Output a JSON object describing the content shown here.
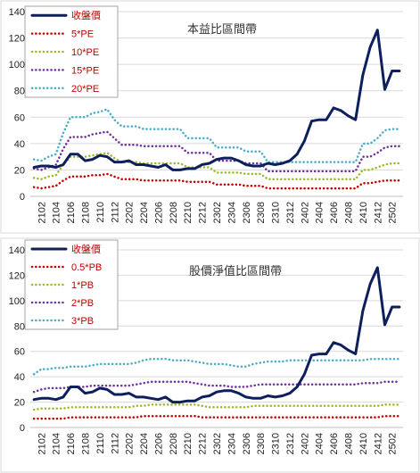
{
  "chart_data": [
    {
      "type": "line",
      "title": "本益比區間帶",
      "ylim": [
        0,
        140
      ],
      "yticks": [
        0,
        20,
        40,
        60,
        80,
        100,
        120,
        140
      ],
      "grid": "horizontal",
      "legend_placement": "top-left",
      "x": [
        "2101",
        "2102",
        "2103",
        "2104",
        "2105",
        "2106",
        "2107",
        "2108",
        "2109",
        "2110",
        "2111",
        "2112",
        "2201",
        "2202",
        "2203",
        "2204",
        "2205",
        "2206",
        "2207",
        "2208",
        "2209",
        "2210",
        "2211",
        "2212",
        "2301",
        "2302",
        "2303",
        "2304",
        "2305",
        "2306",
        "2307",
        "2308",
        "2309",
        "2310",
        "2311",
        "2312",
        "2401",
        "2402",
        "2403",
        "2404",
        "2405",
        "2406",
        "2407",
        "2408",
        "2409",
        "2410",
        "2411",
        "2412",
        "2501",
        "2502",
        "2503"
      ],
      "xtick_labels": [
        "2102",
        "2104",
        "2106",
        "2108",
        "2110",
        "2112",
        "2202",
        "2204",
        "2206",
        "2208",
        "2210",
        "2212",
        "2302",
        "2304",
        "2306",
        "2308",
        "2310",
        "2312",
        "2402",
        "2404",
        "2406",
        "2408",
        "2410",
        "2412",
        "2502"
      ],
      "series": [
        {
          "name": "收盤價",
          "color": "#0d1f5c",
          "style": "solid",
          "width": 3,
          "values": [
            22,
            23,
            23,
            22,
            24,
            32,
            32,
            27,
            28,
            31,
            30,
            26,
            26,
            27,
            24,
            24,
            23,
            22,
            24,
            20,
            20,
            21,
            21,
            24,
            25,
            28,
            29,
            29,
            27,
            24,
            23,
            23,
            25,
            24,
            25,
            27,
            32,
            42,
            57,
            58,
            58,
            67,
            65,
            61,
            58,
            92,
            113,
            126,
            81,
            95,
            95
          ]
        },
        {
          "name": "5*PE",
          "color": "#c00000",
          "style": "dotted",
          "width": 2.5,
          "values": [
            7,
            6,
            7,
            8,
            12,
            15,
            15,
            15,
            16,
            16,
            17,
            15,
            13,
            13,
            13,
            12,
            12,
            12,
            12,
            12,
            12,
            11,
            11,
            11,
            11,
            9,
            9,
            9,
            9,
            8,
            8,
            8,
            6,
            6,
            6,
            6,
            6,
            6,
            6,
            6,
            6,
            6,
            6,
            6,
            6,
            10,
            10,
            11,
            12,
            12,
            12
          ]
        },
        {
          "name": "10*PE",
          "color": "#9bbb2e",
          "style": "dotted",
          "width": 2.5,
          "values": [
            14,
            13,
            15,
            16,
            24,
            30,
            30,
            30,
            31,
            32,
            33,
            29,
            26,
            26,
            26,
            25,
            25,
            25,
            25,
            25,
            25,
            22,
            22,
            22,
            22,
            18,
            18,
            18,
            18,
            17,
            17,
            17,
            13,
            13,
            13,
            13,
            13,
            13,
            13,
            13,
            13,
            13,
            13,
            13,
            13,
            20,
            20,
            22,
            24,
            25,
            25
          ]
        },
        {
          "name": "15*PE",
          "color": "#7030a0",
          "style": "dotted",
          "width": 2.5,
          "values": [
            21,
            20,
            22,
            24,
            36,
            45,
            45,
            45,
            47,
            48,
            49,
            44,
            39,
            39,
            39,
            38,
            38,
            38,
            38,
            38,
            38,
            33,
            33,
            33,
            33,
            27,
            27,
            27,
            27,
            25,
            25,
            25,
            19,
            19,
            19,
            19,
            19,
            19,
            19,
            19,
            19,
            19,
            19,
            19,
            19,
            30,
            30,
            33,
            37,
            38,
            38
          ]
        },
        {
          "name": "20*PE",
          "color": "#4bacc6",
          "style": "dotted",
          "width": 2.5,
          "values": [
            28,
            27,
            30,
            32,
            48,
            60,
            60,
            60,
            63,
            64,
            66,
            58,
            53,
            53,
            53,
            51,
            51,
            51,
            51,
            51,
            51,
            44,
            44,
            44,
            44,
            37,
            37,
            37,
            37,
            34,
            34,
            34,
            26,
            26,
            26,
            26,
            26,
            26,
            26,
            26,
            26,
            26,
            26,
            26,
            26,
            40,
            40,
            44,
            50,
            51,
            51
          ]
        }
      ]
    },
    {
      "type": "line",
      "title": "股價淨值比區間帶",
      "ylim": [
        0,
        140
      ],
      "yticks": [
        0,
        20,
        40,
        60,
        80,
        100,
        120,
        140
      ],
      "grid": "horizontal",
      "legend_placement": "top-left",
      "x": [
        "2101",
        "2102",
        "2103",
        "2104",
        "2105",
        "2106",
        "2107",
        "2108",
        "2109",
        "2110",
        "2111",
        "2112",
        "2201",
        "2202",
        "2203",
        "2204",
        "2205",
        "2206",
        "2207",
        "2208",
        "2209",
        "2210",
        "2211",
        "2212",
        "2301",
        "2302",
        "2303",
        "2304",
        "2305",
        "2306",
        "2307",
        "2308",
        "2309",
        "2310",
        "2311",
        "2312",
        "2401",
        "2402",
        "2403",
        "2404",
        "2405",
        "2406",
        "2407",
        "2408",
        "2409",
        "2410",
        "2411",
        "2412",
        "2501",
        "2502",
        "2503"
      ],
      "xtick_labels": [
        "2102",
        "2104",
        "2106",
        "2108",
        "2110",
        "2112",
        "2202",
        "2204",
        "2206",
        "2208",
        "2210",
        "2212",
        "2302",
        "2304",
        "2306",
        "2308",
        "2310",
        "2312",
        "2402",
        "2404",
        "2406",
        "2408",
        "2410",
        "2412",
        "2502"
      ],
      "series": [
        {
          "name": "收盤價",
          "color": "#0d1f5c",
          "style": "solid",
          "width": 3,
          "values": [
            22,
            23,
            23,
            22,
            24,
            32,
            32,
            27,
            28,
            31,
            30,
            26,
            26,
            27,
            24,
            24,
            23,
            22,
            24,
            20,
            20,
            21,
            21,
            24,
            25,
            28,
            29,
            29,
            27,
            24,
            23,
            23,
            25,
            24,
            25,
            27,
            32,
            42,
            57,
            58,
            58,
            67,
            65,
            61,
            58,
            92,
            113,
            126,
            81,
            95,
            95
          ]
        },
        {
          "name": "0.5*PB",
          "color": "#c00000",
          "style": "dotted",
          "width": 2.5,
          "values": [
            7,
            7,
            7,
            7,
            7,
            8,
            8,
            8,
            8,
            8,
            8,
            8,
            8,
            8,
            8,
            9,
            9,
            9,
            9,
            9,
            9,
            9,
            9,
            8,
            8,
            8,
            8,
            8,
            8,
            8,
            8,
            8,
            8,
            8,
            8,
            8,
            8,
            8,
            8,
            8,
            8,
            8,
            8,
            8,
            8,
            8,
            8,
            8,
            9,
            9,
            9
          ]
        },
        {
          "name": "1*PB",
          "color": "#9bbb2e",
          "style": "dotted",
          "width": 2.5,
          "values": [
            14,
            15,
            15,
            15,
            15,
            16,
            16,
            16,
            16,
            16,
            16,
            16,
            16,
            16,
            17,
            17,
            18,
            18,
            18,
            18,
            18,
            18,
            18,
            17,
            16,
            16,
            16,
            16,
            16,
            16,
            17,
            17,
            17,
            17,
            17,
            17,
            17,
            17,
            17,
            17,
            17,
            17,
            17,
            17,
            17,
            17,
            17,
            17,
            18,
            18,
            18
          ]
        },
        {
          "name": "2*PB",
          "color": "#7030a0",
          "style": "dotted",
          "width": 2.5,
          "values": [
            28,
            30,
            31,
            31,
            31,
            32,
            32,
            32,
            33,
            33,
            33,
            33,
            33,
            33,
            34,
            35,
            36,
            36,
            36,
            36,
            36,
            36,
            35,
            34,
            33,
            33,
            33,
            32,
            32,
            32,
            33,
            34,
            34,
            34,
            34,
            34,
            34,
            34,
            34,
            34,
            34,
            34,
            34,
            34,
            34,
            35,
            35,
            35,
            36,
            36,
            36
          ]
        },
        {
          "name": "3*PB",
          "color": "#4bacc6",
          "style": "dotted",
          "width": 2.5,
          "values": [
            42,
            46,
            46,
            47,
            47,
            48,
            48,
            48,
            49,
            50,
            50,
            50,
            50,
            50,
            51,
            53,
            54,
            54,
            54,
            53,
            53,
            53,
            52,
            51,
            50,
            50,
            50,
            49,
            48,
            48,
            50,
            51,
            52,
            52,
            52,
            53,
            53,
            53,
            53,
            53,
            53,
            53,
            53,
            53,
            53,
            53,
            54,
            54,
            54,
            54,
            54
          ]
        }
      ]
    }
  ]
}
